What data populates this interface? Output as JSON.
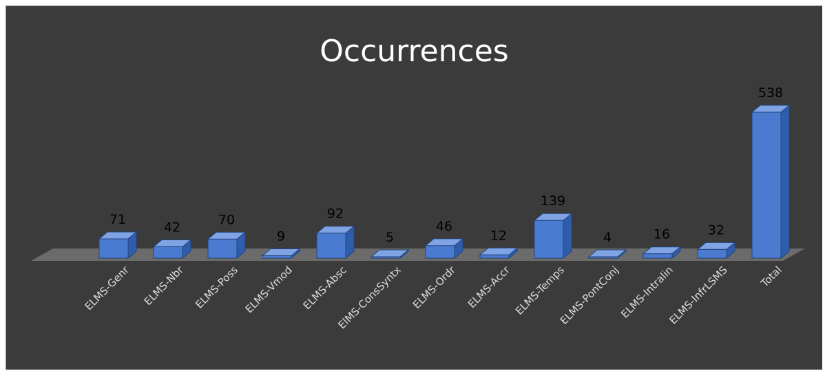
{
  "chart_data": {
    "type": "bar",
    "title": "Occurrences",
    "categories": [
      "ELMS-Genr",
      "ELMS-Nbr",
      "ELMS-Poss",
      "ELMS-Vmod",
      "ELMS-Absc",
      "ElMS-ConsSyntx",
      "ELMS-Ordr",
      "ELMS-Accr",
      "ELMS-Temps",
      "ELMS-PontConj",
      "ELMS-Intralin",
      "ELMS-InfrLSMS",
      "Total"
    ],
    "values": [
      71,
      42,
      70,
      9,
      92,
      5,
      46,
      12,
      139,
      4,
      16,
      32,
      538
    ],
    "data_labels": [
      "71",
      "42",
      "70",
      "9",
      "92",
      "5",
      "46",
      "12",
      "139",
      "4",
      "16",
      "32",
      "538"
    ],
    "xlabel": "",
    "ylabel": "",
    "ylim": [
      0,
      560
    ],
    "grid": false,
    "legend": "none",
    "colors": {
      "background": "#3b3b3b",
      "bar_front": "#4a7bd0",
      "bar_top": "#7fa3e3",
      "bar_side": "#2f5cab",
      "floor": "#6b6b6b",
      "title": "#ffffff",
      "tick_label": "#dcdcdc",
      "data_label": "#000000"
    }
  }
}
